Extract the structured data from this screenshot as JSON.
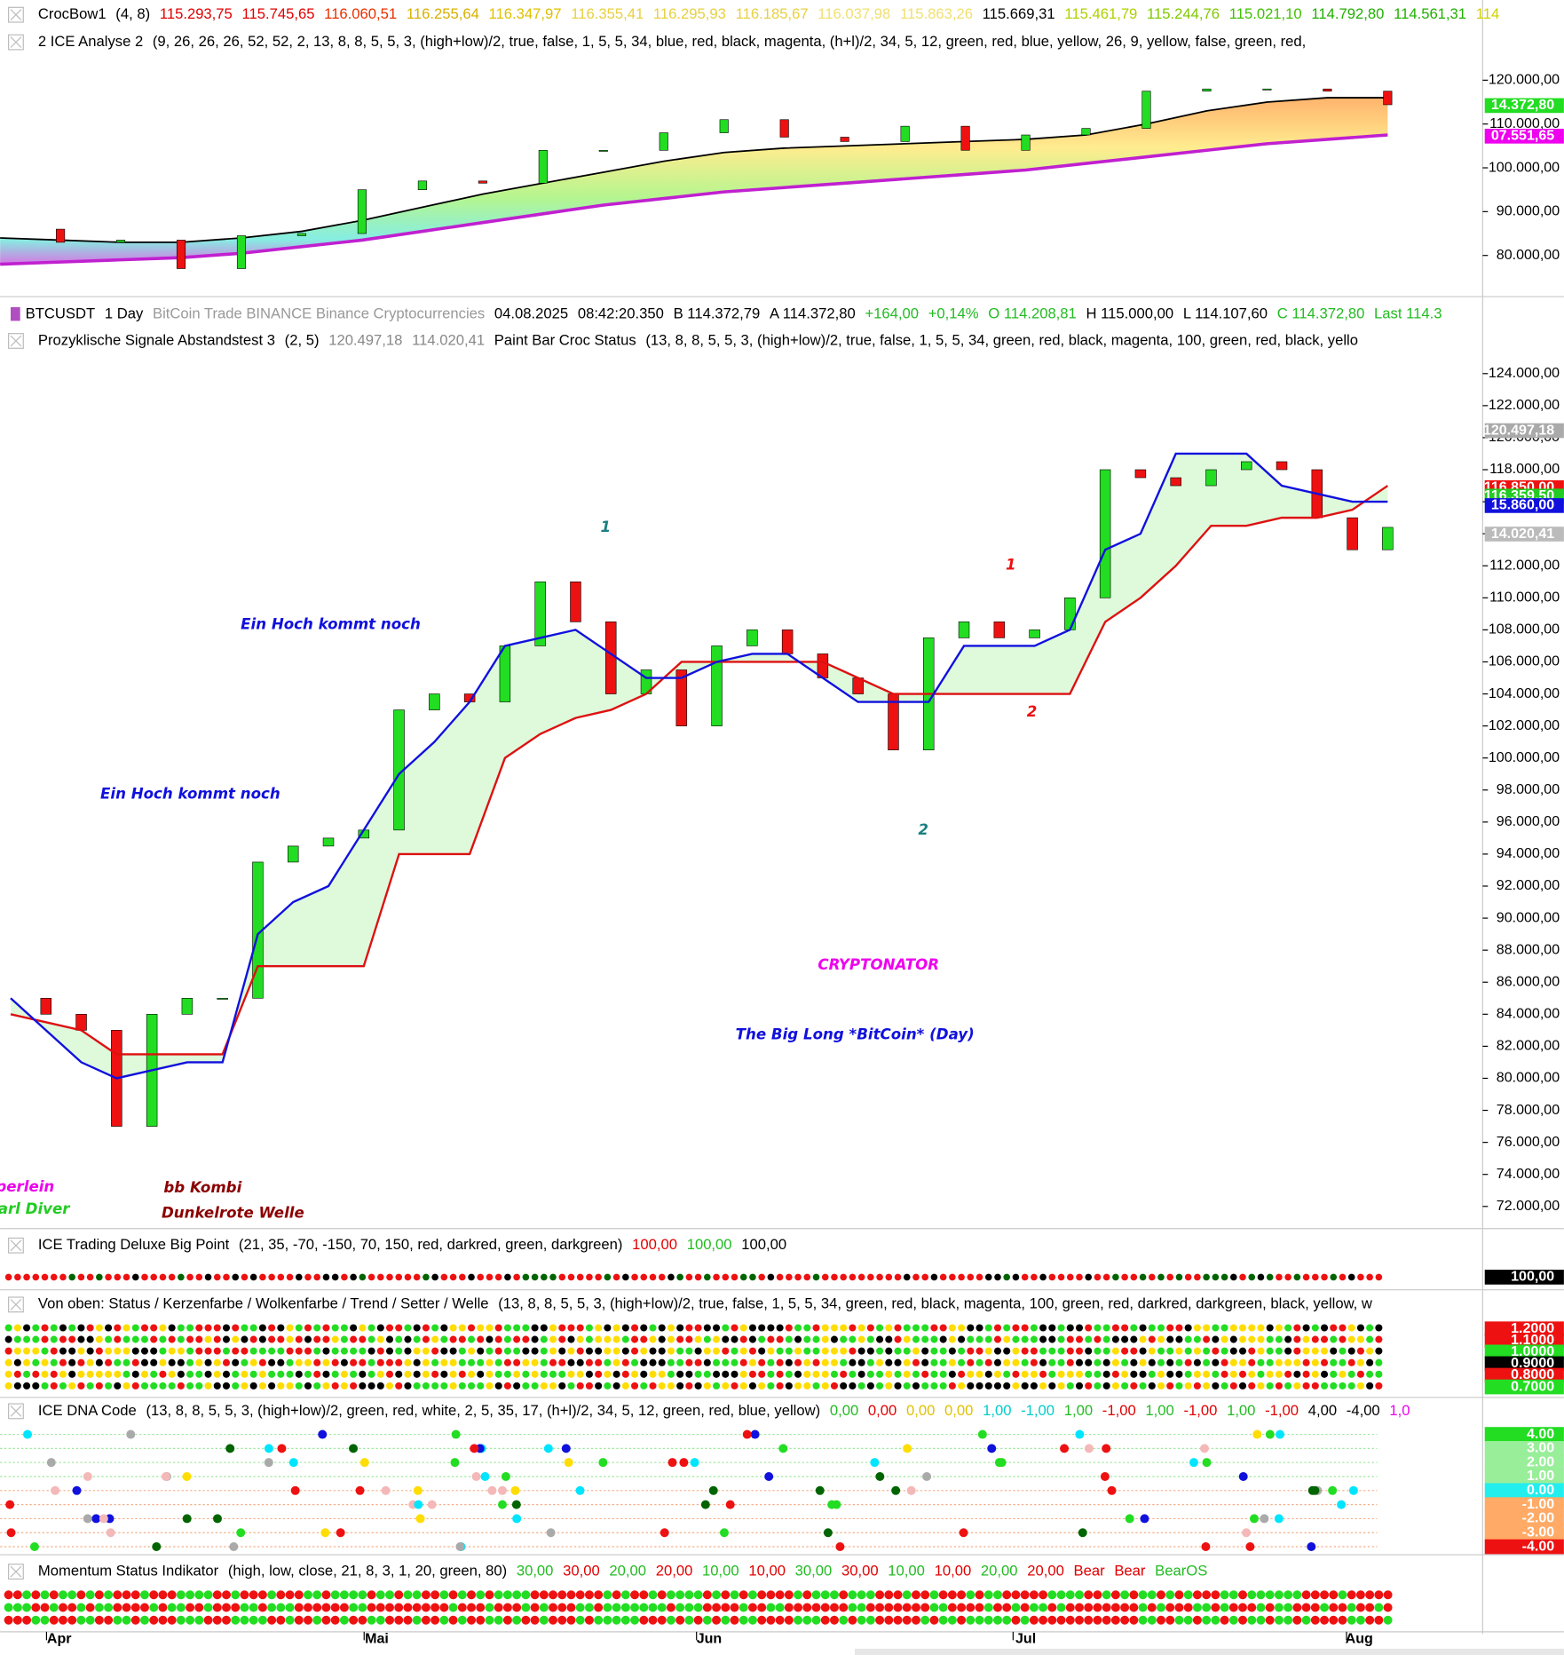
{
  "top_panel": {
    "line1": [
      {
        "text": "CrocBow1",
        "color": "#000"
      },
      {
        "text": "(4,  8)",
        "color": "#000"
      },
      {
        "text": "115.293,75",
        "color": "#e00000"
      },
      {
        "text": "115.745,65",
        "color": "#e00000"
      },
      {
        "text": "116.060,51",
        "color": "#e83000"
      },
      {
        "text": "116.255,64",
        "color": "#d8b000"
      },
      {
        "text": "116.347,97",
        "color": "#e0c000"
      },
      {
        "text": "116.355,41",
        "color": "#e8d040"
      },
      {
        "text": "116.295,93",
        "color": "#e8d040"
      },
      {
        "text": "116.185,67",
        "color": "#e8d040"
      },
      {
        "text": "116.037,98",
        "color": "#f0e070"
      },
      {
        "text": "115.863,26",
        "color": "#f0e070"
      },
      {
        "text": "115.669,31",
        "color": "#000"
      },
      {
        "text": "115.461,79",
        "color": "#b0d000"
      },
      {
        "text": "115.244,76",
        "color": "#80c800"
      },
      {
        "text": "115.021,10",
        "color": "#40c000"
      },
      {
        "text": "114.792,80",
        "color": "#20b000"
      },
      {
        "text": "114.561,31",
        "color": "#20b000"
      },
      {
        "text": "114",
        "color": "#d0d000"
      }
    ],
    "line2": [
      {
        "text": "2 ICE Analyse 2",
        "color": "#000"
      },
      {
        "text": "(9,  26,  26,  26,  52,  52,  2,  13,  8,  8,  5,  5,  3,  (high+low)/2,  true,  false,  1,  5,  5,  34,  blue,  red,  black,  magenta,  (h+l)/2,  34,  5,  12,  green,  red,  blue,  yellow,  26,  9,  yellow,  false,  green,  red,",
        "color": "#000"
      }
    ],
    "ylim": [
      71330,
      125780
    ],
    "yticks": [
      {
        "value": 120000,
        "label": "120.000,00"
      },
      {
        "value": 110000,
        "label": "110.000,00"
      },
      {
        "value": 100000,
        "label": "100.000,00"
      },
      {
        "value": 90000,
        "label": "90.000,00"
      },
      {
        "value": 80000,
        "label": "80.000,00"
      }
    ],
    "price_tags": [
      {
        "label": "14.372,80",
        "color": "#22dd22"
      },
      {
        "label": "07.551,65",
        "color": "#ee00ee"
      }
    ],
    "close": [
      86000,
      83000,
      83500,
      77000,
      84500,
      85000,
      95000,
      97000,
      96500,
      104000,
      104000,
      108000,
      111000,
      107000,
      106000,
      109500,
      104000,
      107500,
      109000,
      117500,
      118000,
      118000,
      117500,
      114400
    ],
    "crocbow": [
      84000,
      83500,
      83000,
      83000,
      84000,
      85500,
      88000,
      91000,
      94000,
      96500,
      99000,
      101500,
      103500,
      104500,
      105000,
      105500,
      106000,
      106500,
      107500,
      110000,
      113000,
      115000,
      116000,
      116000
    ],
    "lower_band": [
      78000,
      78500,
      79000,
      79500,
      80500,
      82000,
      83500,
      85500,
      87500,
      89500,
      91500,
      93000,
      94500,
      95500,
      96500,
      97500,
      98500,
      99500,
      101000,
      102500,
      104000,
      105500,
      106500,
      107500
    ]
  },
  "main_panel": {
    "line1": [
      {
        "text": "BTCUSDT",
        "color": "#000"
      },
      {
        "text": "1 Day",
        "color": "#000"
      },
      {
        "text": "BitCoin  Trade  BINANCE  Binance  Cryptocurrencies",
        "color": "#999"
      },
      {
        "text": "04.08.2025",
        "color": "#000"
      },
      {
        "text": "08:42:20.350",
        "color": "#000"
      },
      {
        "text": "B 114.372,79",
        "color": "#000"
      },
      {
        "text": "A 114.372,80",
        "color": "#000"
      },
      {
        "text": "+164,00",
        "color": "#22bb22"
      },
      {
        "text": "+0,14%",
        "color": "#22bb22"
      },
      {
        "text": "O 114.208,81",
        "color": "#22bb22"
      },
      {
        "text": "H 115.000,00",
        "color": "#000"
      },
      {
        "text": "L 114.107,60",
        "color": "#000"
      },
      {
        "text": "C 114.372,80",
        "color": "#22bb22"
      },
      {
        "text": "Last 114.3",
        "color": "#22bb22"
      }
    ],
    "line2": [
      {
        "text": "Prozyklische Signale Abstandstest 3",
        "color": "#000"
      },
      {
        "text": "(2,  5)",
        "color": "#000"
      },
      {
        "text": "120.497,18",
        "color": "#888"
      },
      {
        "text": "114.020,41",
        "color": "#888"
      },
      {
        "text": "Paint Bar Croc Status",
        "color": "#000"
      },
      {
        "text": "(13,  8,  8,  5,  5,  3,  (high+low)/2,  true,  false,  1,  5,  5,  34,  green,  red,  black,  magenta,  100,  green,  red,  black,  yello",
        "color": "#000"
      }
    ],
    "ylim": [
      70880,
      124920
    ],
    "yticks": [
      {
        "value": 124000,
        "label": "124.000,00"
      },
      {
        "value": 122000,
        "label": "122.000,00"
      },
      {
        "value": 120000,
        "label": "120.000,00"
      },
      {
        "value": 118000,
        "label": "118.000,00"
      },
      {
        "value": 116000,
        "label": "116.000,00"
      },
      {
        "value": 114000,
        "label": "114.000,00"
      },
      {
        "value": 112000,
        "label": "112.000,00"
      },
      {
        "value": 110000,
        "label": "110.000,00"
      },
      {
        "value": 108000,
        "label": "108.000,00"
      },
      {
        "value": 106000,
        "label": "106.000,00"
      },
      {
        "value": 104000,
        "label": "104.000,00"
      },
      {
        "value": 102000,
        "label": "102.000,00"
      },
      {
        "value": 100000,
        "label": "100.000,00"
      },
      {
        "value": 98000,
        "label": "98.000,00"
      },
      {
        "value": 96000,
        "label": "96.000,00"
      },
      {
        "value": 94000,
        "label": "94.000,00"
      },
      {
        "value": 92000,
        "label": "92.000,00"
      },
      {
        "value": 90000,
        "label": "90.000,00"
      },
      {
        "value": 88000,
        "label": "88.000,00"
      },
      {
        "value": 86000,
        "label": "86.000,00"
      },
      {
        "value": 84000,
        "label": "84.000,00"
      },
      {
        "value": 82000,
        "label": "82.000,00"
      },
      {
        "value": 80000,
        "label": "80.000,00"
      },
      {
        "value": 78000,
        "label": "78.000,00"
      },
      {
        "value": 76000,
        "label": "76.000,00"
      },
      {
        "value": 74000,
        "label": "74.000,00"
      },
      {
        "value": 72000,
        "label": "72.000,00"
      }
    ],
    "price_tags": [
      {
        "label": "120.497,18",
        "color": "#aaaaaa"
      },
      {
        "label": "116.850,00",
        "color": "#ee1111"
      },
      {
        "label": "116.359,50",
        "color": "#22cc22"
      },
      {
        "label": "15.860,00",
        "color": "#1111dd"
      },
      {
        "label": "14.020,41",
        "color": "#bbbbbb"
      }
    ],
    "close": [
      85000,
      84000,
      83000,
      77000,
      84000,
      85000,
      85000,
      93500,
      94500,
      95000,
      95500,
      103000,
      104000,
      103500,
      107000,
      111000,
      108500,
      104000,
      105500,
      102000,
      107000,
      108000,
      106500,
      105000,
      104000,
      100500,
      107500,
      108500,
      107500,
      108000,
      110000,
      118000,
      117500,
      117000,
      118000,
      118500,
      118000,
      115000,
      113000,
      114400
    ],
    "red_line": [
      84000,
      83500,
      83000,
      81500,
      81500,
      81500,
      81500,
      87000,
      87000,
      87000,
      87000,
      94000,
      94000,
      94000,
      100000,
      101500,
      102500,
      103000,
      104000,
      106000,
      106000,
      106000,
      106000,
      106000,
      105000,
      104000,
      104000,
      104000,
      104000,
      104000,
      104000,
      108500,
      110000,
      112000,
      114500,
      114500,
      115000,
      115000,
      115500,
      117000
    ],
    "blue_line": [
      85000,
      83000,
      81000,
      80000,
      80500,
      81000,
      81000,
      89000,
      91000,
      92000,
      95500,
      99000,
      101000,
      103500,
      107000,
      107500,
      108000,
      106500,
      105000,
      105000,
      106000,
      106500,
      106500,
      105000,
      103500,
      103500,
      103500,
      107000,
      107000,
      107000,
      108000,
      113000,
      114000,
      119000,
      119000,
      119000,
      117000,
      116500,
      116000,
      116000
    ],
    "annotations": {
      "hoch_1": "Ein Hoch kommt noch",
      "hoch_2": "Ein Hoch kommt noch",
      "wave_1_teal": "1",
      "wave_2_teal": "2",
      "wave_1_red": "1",
      "wave_2_red": "2",
      "brand": "CRYPTONATOR",
      "subtitle": "The Big Long *BitCoin* (Day)",
      "perlein": "perlein",
      "diver": "arl Diver",
      "bb_kombi": "bb Kombi",
      "welle": "Dunkelrote Welle"
    }
  },
  "ice_trading": {
    "line1": [
      {
        "text": "ICE Trading Deluxe Big Point",
        "color": "#000"
      },
      {
        "text": "(21,  35,  -70,  -150,  70,  150,  red,  darkred,  green,  darkgreen)",
        "color": "#000"
      },
      {
        "text": "100,00",
        "color": "#e00000"
      },
      {
        "text": "100,00",
        "color": "#22bb22"
      },
      {
        "text": "100,00",
        "color": "#000"
      }
    ],
    "tag": "100,00"
  },
  "von_oben": {
    "line1": [
      {
        "text": "Von oben: Status / Kerzenfarbe / Wolkenfarbe / Trend / Setter / Welle",
        "color": "#000"
      },
      {
        "text": "(13,  8,  8,  5,  5,  3,  (high+low)/2,  true,  false,  1,  5,  5,  34,  green,  red,  black,  magenta,  100,  green,  red,  darkred,  darkgreen,  black,  yellow,  w",
        "color": "#000"
      }
    ],
    "tags": [
      {
        "label": "1.2000",
        "color": "#ee1111"
      },
      {
        "label": "1.1000",
        "color": "#ee1111"
      },
      {
        "label": "1.0000",
        "color": "#22dd22"
      },
      {
        "label": "0.9000",
        "color": "#000000"
      },
      {
        "label": "0.8000",
        "color": "#ee1111"
      },
      {
        "label": "0.7000",
        "color": "#22dd22"
      }
    ]
  },
  "ice_dna": {
    "line1": [
      {
        "text": "ICE DNA Code",
        "color": "#000"
      },
      {
        "text": "(13,  8,  8,  5,  5,  3,  (high+low)/2,  green,  red,  white,  2,  5,  35,  17,  (h+l)/2,  34,  5,  12,  green,  red,  blue,  yellow)",
        "color": "#000"
      },
      {
        "text": "0,00",
        "color": "#22bb22"
      },
      {
        "text": "0,00",
        "color": "#e00000"
      },
      {
        "text": "0,00",
        "color": "#e0c000"
      },
      {
        "text": "0,00",
        "color": "#e0c000"
      },
      {
        "text": "1,00",
        "color": "#00cccc"
      },
      {
        "text": "-1,00",
        "color": "#00cccc"
      },
      {
        "text": "1,00",
        "color": "#22bb22"
      },
      {
        "text": "-1,00",
        "color": "#e00000"
      },
      {
        "text": "1,00",
        "color": "#22bb22"
      },
      {
        "text": "-1,00",
        "color": "#e00000"
      },
      {
        "text": "1,00",
        "color": "#22bb22"
      },
      {
        "text": "-1,00",
        "color": "#e00000"
      },
      {
        "text": "4,00",
        "color": "#000"
      },
      {
        "text": "-4,00",
        "color": "#000"
      },
      {
        "text": "1,0",
        "color": "#ee00ee"
      }
    ],
    "tags": [
      {
        "label": "4.00",
        "color": "#22dd22"
      },
      {
        "label": "3.00",
        "color": "#99ee99"
      },
      {
        "label": "2.00",
        "color": "#99ee99"
      },
      {
        "label": "1.00",
        "color": "#99ee99"
      },
      {
        "label": "0.00",
        "color": "#22eeee"
      },
      {
        "label": "-1.00",
        "color": "#ffaa66"
      },
      {
        "label": "-2.00",
        "color": "#ffaa66"
      },
      {
        "label": "-3.00",
        "color": "#ffaa66"
      },
      {
        "label": "-4.00",
        "color": "#ee1111"
      }
    ]
  },
  "momentum": {
    "line1": [
      {
        "text": "Momentum Status Indikator",
        "color": "#000"
      },
      {
        "text": "(high,  low,  close,  21,  8,  3,  1,  20,  green,  80)",
        "color": "#000"
      },
      {
        "text": "30,00",
        "color": "#22bb22"
      },
      {
        "text": "30,00",
        "color": "#e00000"
      },
      {
        "text": "20,00",
        "color": "#22bb22"
      },
      {
        "text": "20,00",
        "color": "#e00000"
      },
      {
        "text": "10,00",
        "color": "#22bb22"
      },
      {
        "text": "10,00",
        "color": "#e00000"
      },
      {
        "text": "30,00",
        "color": "#22bb22"
      },
      {
        "text": "30,00",
        "color": "#e00000"
      },
      {
        "text": "10,00",
        "color": "#22bb22"
      },
      {
        "text": "10,00",
        "color": "#e00000"
      },
      {
        "text": "20,00",
        "color": "#22bb22"
      },
      {
        "text": "20,00",
        "color": "#e00000"
      },
      {
        "text": "Bear",
        "color": "#e00000"
      },
      {
        "text": "Bear",
        "color": "#e00000"
      },
      {
        "text": "BearOS",
        "color": "#22bb22"
      }
    ]
  },
  "time_axis": [
    "Apr",
    "Mai",
    "Jun",
    "Jul",
    "Aug"
  ]
}
